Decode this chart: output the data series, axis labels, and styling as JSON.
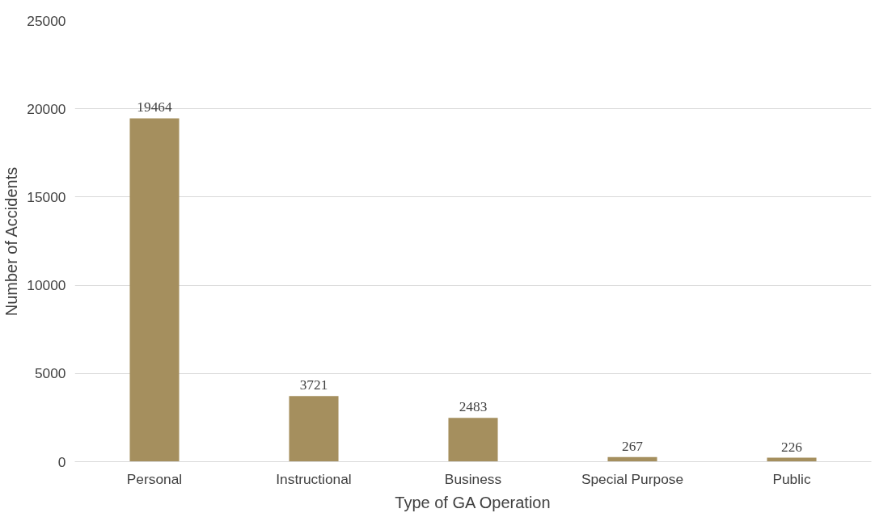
{
  "chart_data": {
    "type": "bar",
    "xlabel": "Type of GA Operation",
    "ylabel": "Number of Accidents",
    "categories": [
      "Personal",
      "Instructional",
      "Business",
      "Special Purpose",
      "Public"
    ],
    "values": [
      19464,
      3721,
      2483,
      267,
      226
    ],
    "color": "#a58f5e",
    "ylim": [
      0,
      25000
    ],
    "yticks": [
      0,
      5000,
      10000,
      15000,
      20000,
      25000
    ],
    "grid": "y",
    "data_labels": true
  }
}
